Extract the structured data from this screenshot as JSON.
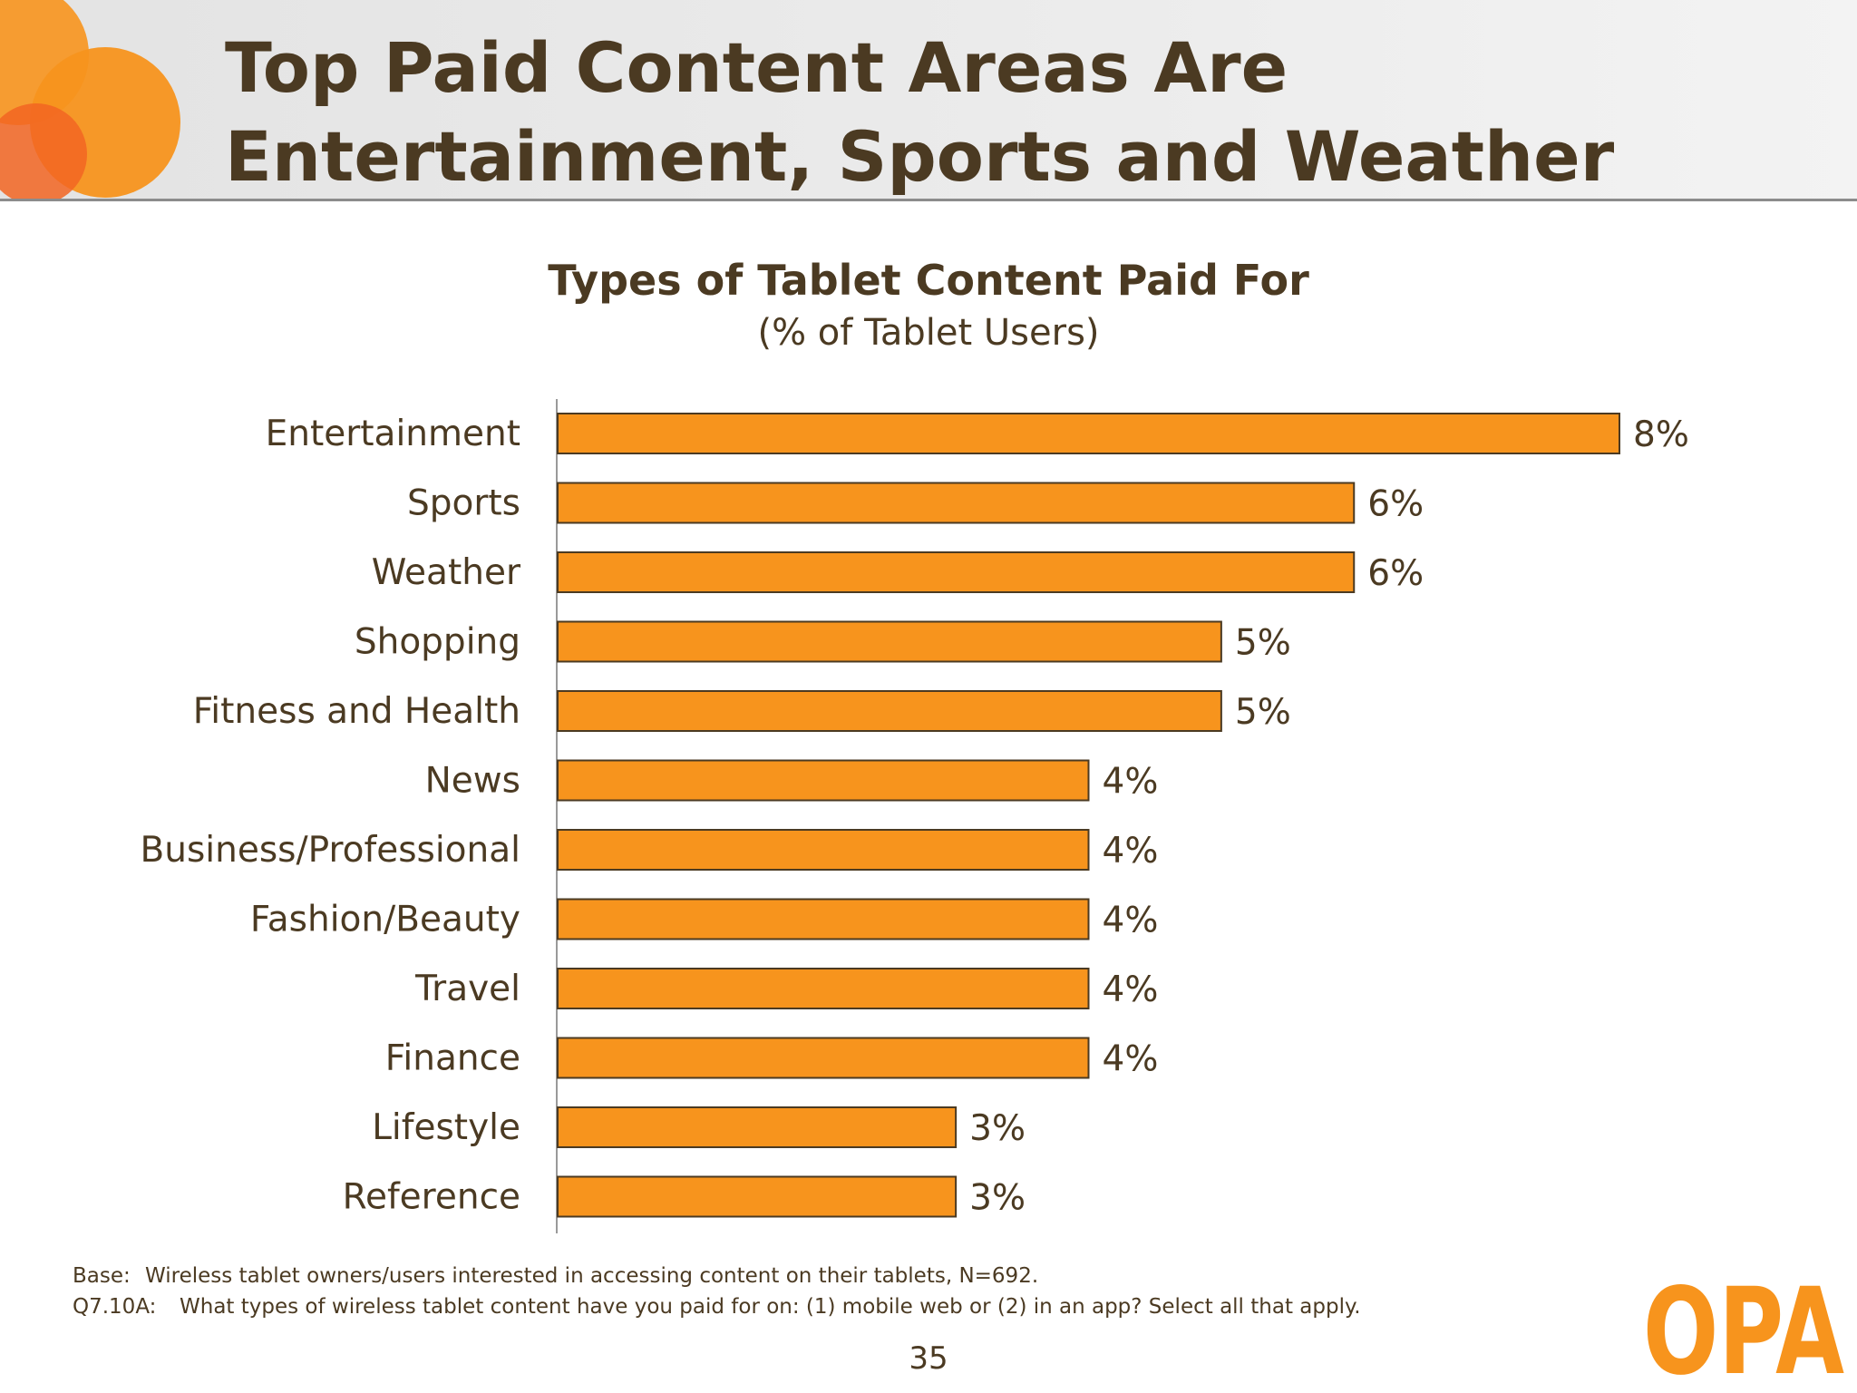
{
  "slide": {
    "title": "Top Paid Content Areas Are Entertainment, Sports and Weather",
    "page_number": "35"
  },
  "logo": {
    "text": "OPA",
    "color": "#f7941d"
  },
  "colors": {
    "bar_fill": "#f7941d",
    "bar_stroke": "#4b3a22",
    "text": "#4b3a22",
    "accent_circle_1": "#f7941d",
    "accent_circle_2": "#f26522"
  },
  "chart_data": {
    "type": "bar",
    "orientation": "horizontal",
    "title": "Types of Tablet Content Paid For",
    "subtitle": "(% of Tablet Users)",
    "categories": [
      "Entertainment",
      "Sports",
      "Weather",
      "Shopping",
      "Fitness and Health",
      "News",
      "Business/Professional",
      "Fashion/Beauty",
      "Travel",
      "Finance",
      "Lifestyle",
      "Reference"
    ],
    "values": [
      8,
      6,
      6,
      5,
      5,
      4,
      4,
      4,
      4,
      4,
      3,
      3
    ],
    "value_labels": [
      "8%",
      "6%",
      "6%",
      "5%",
      "5%",
      "4%",
      "4%",
      "4%",
      "4%",
      "4%",
      "3%",
      "3%"
    ],
    "unit": "%",
    "xlim": [
      0,
      8
    ],
    "grid": false,
    "legend": "none"
  },
  "footnotes": {
    "base_key": "Base:",
    "base_text": "Wireless tablet owners/users interested in accessing content on their tablets, N=692.",
    "question_key": "Q7.10A:",
    "question_text": "What types of wireless tablet content have you paid for on: (1) mobile web or (2) in an app? Select all that apply."
  }
}
